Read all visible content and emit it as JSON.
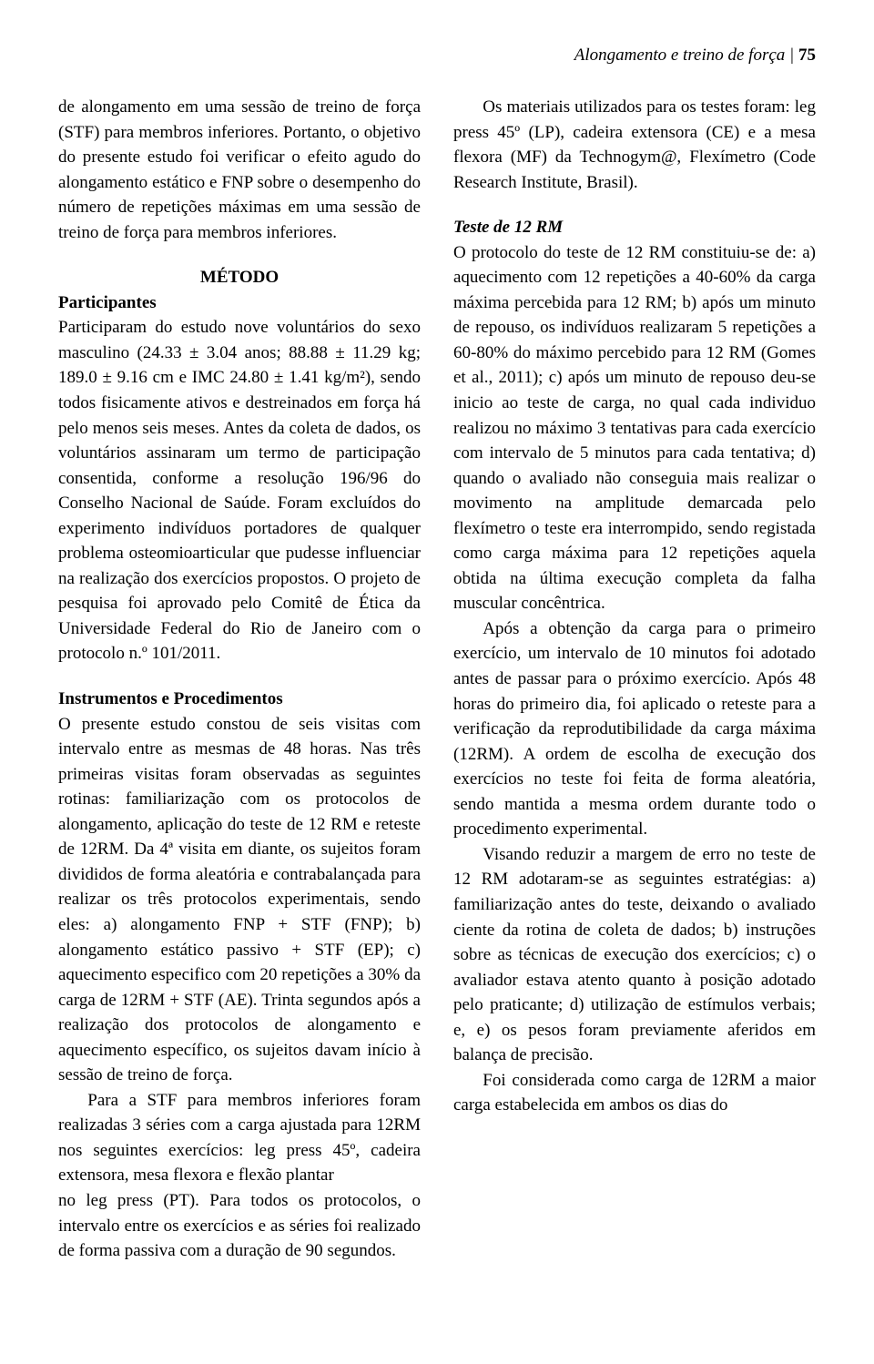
{
  "header": {
    "running": "Alongamento e treino de força | ",
    "pagenum": "75"
  },
  "left": {
    "p1": "de alongamento em uma sessão de treino de força (STF) para membros inferiores. Portanto, o objetivo do presente estudo foi verificar o efeito agudo do alongamento estático e FNP sobre o desempenho do número de repetições máximas em uma sessão de treino de força para membros inferiores.",
    "metodo_title": "MÉTODO",
    "participantes_title": "Participantes",
    "p2": "Participaram do estudo nove voluntários do sexo masculino (24.33 ± 3.04 anos; 88.88 ± 11.29 kg; 189.0 ± 9.16 cm e IMC 24.80 ± 1.41 kg/m²), sendo todos fisicamente ativos e destreinados em força há pelo menos seis meses. Antes da coleta de dados, os voluntários assinaram um termo de participação consentida, conforme a resolução 196/96 do Conselho Nacional de Saúde. Foram excluídos do experimento indivíduos portadores de qualquer problema osteomioarticular que pudesse influenciar na realização dos exercícios propostos. O projeto de pesquisa foi aprovado pelo Comitê de Ética da Universidade Federal do Rio de Janeiro com o protocolo n.º 101/2011.",
    "instrumentos_title": "Instrumentos e Procedimentos",
    "p3": "O presente estudo constou de seis visitas com intervalo entre as mesmas de 48 horas. Nas três primeiras visitas foram observadas as seguintes rotinas: familiarização com os protocolos de alongamento, aplicação do teste de 12 RM e reteste de 12RM. Da 4ª visita em diante, os sujeitos foram divididos de forma aleatória e contrabalançada para realizar os três protocolos experimentais, sendo eles: a) alongamento FNP + STF (FNP); b) alongamento estático passivo + STF (EP); c) aquecimento especifico com 20 repetições a 30% da carga de 12RM + STF (AE). Trinta segundos após a realização dos protocolos de alongamento e aquecimento específico, os sujeitos davam início à sessão de treino de força.",
    "p4": "Para a STF para membros inferiores foram realizadas 3 séries com a carga ajustada para 12RM nos seguintes exercícios: leg press 45º, cadeira extensora, mesa flexora e flexão plantar"
  },
  "right": {
    "p1": "no leg press (PT). Para todos os protocolos, o intervalo entre os exercícios e as séries foi realizado de forma passiva com a duração de 90 segundos.",
    "p2": "Os materiais utilizados para os testes foram: leg press 45º (LP), cadeira extensora (CE) e a mesa flexora (MF) da Technogym@, Flexímetro (Code Research Institute, Brasil).",
    "teste_title": "Teste de 12 RM",
    "p3": "O protocolo do teste de 12 RM constituiu-se de: a) aquecimento com 12 repetições a 40-60% da carga máxima percebida para 12 RM; b) após um minuto de repouso, os indivíduos realizaram 5 repetições a 60-80% do máximo percebido para 12 RM (Gomes et al., 2011); c) após um minuto de repouso deu-se inicio ao teste de carga, no qual cada individuo realizou no máximo 3 tentativas para cada exercício com intervalo de 5 minutos para cada tentativa; d) quando o avaliado não conseguia mais realizar o movimento na amplitude demarcada pelo flexímetro o teste era interrompido, sendo registada como carga máxima para 12 repetições aquela obtida na última execução completa da falha muscular concêntrica.",
    "p4": "Após a obtenção da carga para o primeiro exercício, um intervalo de 10 minutos foi adotado antes de passar para o próximo exercício. Após 48 horas do primeiro dia, foi aplicado o reteste para a verificação da reprodutibilidade da carga máxima (12RM). A ordem de escolha de execução dos exercícios no teste foi feita de forma aleatória, sendo mantida a mesma ordem durante todo o procedimento experimental.",
    "p5": "Visando reduzir a margem de erro no teste de 12 RM adotaram-se as seguintes estratégias: a) familiarização antes do teste, deixando o avaliado ciente da rotina de coleta de dados; b) instruções sobre as técnicas de execução dos exercícios; c) o avaliador estava atento quanto à posição adotado pelo praticante; d) utilização de estímulos verbais; e, e) os pesos foram previamente aferidos em balança de precisão.",
    "p6": "Foi considerada como carga de 12RM a maior carga estabelecida em ambos os dias do"
  }
}
